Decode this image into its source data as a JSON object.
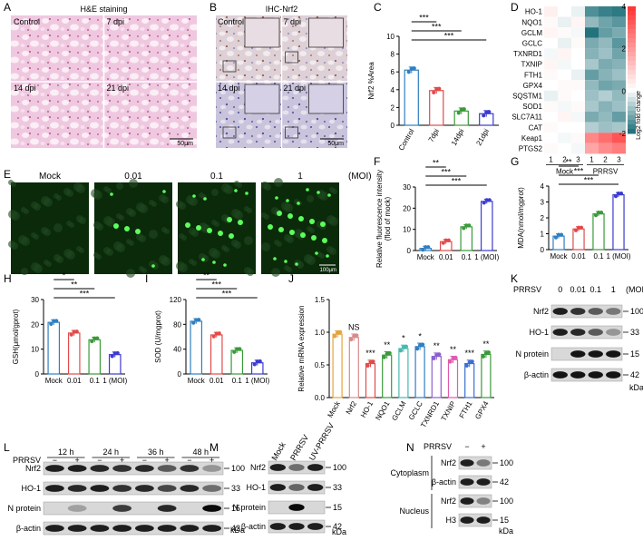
{
  "panel_letters": [
    "A",
    "B",
    "C",
    "D",
    "E",
    "F",
    "G",
    "H",
    "I",
    "J",
    "K",
    "L",
    "M",
    "N"
  ],
  "panelA": {
    "title": "H&E staining",
    "quad_labels": [
      "Control",
      "7 dpi",
      "14 dpi",
      "21 dpi"
    ],
    "scale_bar": "50μm"
  },
  "panelB": {
    "title": "IHC-Nrf2",
    "quad_labels": [
      "Control",
      "7 dpi",
      "14 dpi",
      "21 dpi"
    ],
    "scale_bar": "50μm"
  },
  "panelE": {
    "labels": [
      "Mock",
      "0.01",
      "0.1",
      "1"
    ],
    "unit": "(MOI)",
    "scale_bar": "100μm"
  },
  "panelD": {
    "genes": [
      "HO-1",
      "NQO1",
      "GCLM",
      "GCLC",
      "TXNRD1",
      "TXNIP",
      "FTH1",
      "GPX4",
      "SQSTM1",
      "SOD1",
      "SLC7A11",
      "CAT",
      "Keap1",
      "PTGS2"
    ],
    "reps": [
      "1",
      "2",
      "3",
      "1",
      "2",
      "3"
    ],
    "groups": [
      "Mock",
      "PRRSV"
    ],
    "colorbar_ticks": [
      "4",
      "2",
      "0",
      "-2"
    ],
    "colorbar_label": "Log2 fold change",
    "values": [
      [
        0.3,
        0.0,
        -0.2,
        -1.6,
        -1.8,
        -1.9
      ],
      [
        0.1,
        -0.2,
        0.2,
        -1.0,
        -1.3,
        -1.5
      ],
      [
        0.2,
        0.1,
        -0.1,
        -2.0,
        -1.4,
        -1.2
      ],
      [
        0.0,
        -0.2,
        0.1,
        -1.2,
        -1.0,
        -1.5
      ],
      [
        -0.1,
        0.2,
        0.0,
        -1.1,
        -0.9,
        -1.3
      ],
      [
        0.2,
        -0.1,
        0.0,
        -0.8,
        -1.2,
        -1.1
      ],
      [
        0.1,
        0.0,
        -0.2,
        -1.4,
        -1.1,
        -0.9
      ],
      [
        0.0,
        0.1,
        0.1,
        -1.0,
        -1.3,
        -1.2
      ],
      [
        -0.2,
        0.1,
        0.0,
        -0.9,
        -0.7,
        -1.0
      ],
      [
        0.1,
        -0.1,
        0.1,
        -0.8,
        -1.1,
        -0.9
      ],
      [
        0.0,
        0.2,
        -0.1,
        -1.2,
        -1.0,
        -1.4
      ],
      [
        0.1,
        0.0,
        0.0,
        -0.7,
        -0.9,
        -0.8
      ],
      [
        0.0,
        -0.1,
        0.1,
        2.4,
        2.9,
        3.4
      ],
      [
        0.1,
        0.0,
        -0.1,
        1.8,
        2.3,
        2.6
      ]
    ]
  },
  "chart_data": [
    {
      "panel": "C",
      "type": "bar",
      "categories": [
        "Control",
        "7dpi",
        "14dpi",
        "21dpi"
      ],
      "values": [
        6.2,
        3.9,
        1.6,
        1.3
      ],
      "ylabel": "Nrf2 %Area",
      "ylim": [
        0,
        10
      ],
      "yticks": [
        "0",
        "2",
        "4",
        "6",
        "8",
        "10"
      ],
      "sig": [
        "***",
        "***",
        "***"
      ],
      "colors": [
        "#2f7fc1",
        "#e24a4a",
        "#3a9a3a",
        "#3b3bd0"
      ]
    },
    {
      "panel": "F",
      "type": "bar",
      "categories": [
        "Mock",
        "0.01",
        "0.1",
        "1 (MOI)"
      ],
      "values": [
        1.0,
        4.2,
        11.2,
        23.2
      ],
      "ylabel": "Relative fluorescence intensity (flod of mock)",
      "ylim": [
        0,
        30
      ],
      "yticks": [
        "0",
        "10",
        "20",
        "30"
      ],
      "sig": [
        "**",
        "***",
        "***"
      ],
      "colors": [
        "#2f7fc1",
        "#e24a4a",
        "#3a9a3a",
        "#3b3bd0"
      ]
    },
    {
      "panel": "G",
      "type": "bar",
      "categories": [
        "Mock",
        "0.01",
        "0.1",
        "1 (MOI)"
      ],
      "values": [
        0.85,
        1.3,
        2.25,
        3.45
      ],
      "ylabel": "MDA(nmol/mgprot)",
      "ylim": [
        0,
        4
      ],
      "yticks": [
        "0",
        "1",
        "2",
        "3",
        "4"
      ],
      "sig": [
        "**",
        "***",
        "***"
      ],
      "colors": [
        "#2f7fc1",
        "#e24a4a",
        "#3a9a3a",
        "#3b3bd0"
      ]
    },
    {
      "panel": "H",
      "type": "bar",
      "categories": [
        "Mock",
        "0.01",
        "0.1",
        "1 (MOI)"
      ],
      "values": [
        20.8,
        16.5,
        13.8,
        7.8
      ],
      "ylabel": "GSH(μmol/gprot)",
      "ylim": [
        0,
        30
      ],
      "yticks": [
        "0",
        "10",
        "20",
        "30"
      ],
      "sig": [
        "*",
        "**",
        "***"
      ],
      "colors": [
        "#2f7fc1",
        "#e24a4a",
        "#3a9a3a",
        "#3b3bd0"
      ]
    },
    {
      "panel": "I",
      "type": "bar",
      "categories": [
        "Mock",
        "0.01",
        "0.1",
        "1 (MOI)"
      ],
      "values": [
        85,
        63,
        38,
        18
      ],
      "ylabel": "SOD (U/mgprot)",
      "ylim": [
        0,
        120
      ],
      "yticks": [
        "0",
        "40",
        "80",
        "120"
      ],
      "sig": [
        "**",
        "***",
        "***"
      ],
      "colors": [
        "#2f7fc1",
        "#e24a4a",
        "#3a9a3a",
        "#3b3bd0"
      ]
    },
    {
      "panel": "J",
      "type": "bar",
      "categories": [
        "Mock",
        "Nrf2",
        "HO-1",
        "NQO1",
        "GCLM",
        "GCLC",
        "TXNRD1",
        "TXNIP",
        "FTH1",
        "GPX4"
      ],
      "values": [
        0.97,
        0.92,
        0.52,
        0.65,
        0.75,
        0.78,
        0.63,
        0.58,
        0.52,
        0.66
      ],
      "ylabel": "Relative mRNA expression",
      "ylim": [
        0,
        1.5
      ],
      "yticks": [
        "0.0",
        "0.5",
        "1.0",
        "1.5"
      ],
      "sig": [
        "",
        "NS",
        "***",
        "**",
        "*",
        "*",
        "**",
        "**",
        "***",
        "**"
      ],
      "colors": [
        "#e6a23c",
        "#d98a8a",
        "#e24a4a",
        "#3a9a3a",
        "#48b8b0",
        "#2f7fc1",
        "#8c5fd0",
        "#e05ab0",
        "#3b6fd0",
        "#3a9a3a"
      ]
    }
  ],
  "panelK": {
    "header": "PRRSV",
    "doses": [
      "0",
      "0.01",
      "0.1",
      "1"
    ],
    "unit": "(MOI)",
    "rows": [
      "Nrf2",
      "HO-1",
      "N protein",
      "β-actin"
    ],
    "mw": [
      "100",
      "33",
      "15",
      "42"
    ],
    "kda": "kDa"
  },
  "panelL": {
    "times": [
      "12 h",
      "24 h",
      "36 h",
      "48 h"
    ],
    "header": "PRRSV",
    "signs": [
      "−",
      "+",
      "−",
      "+",
      "−",
      "+",
      "−",
      "+"
    ],
    "rows": [
      "Nrf2",
      "HO-1",
      "N protein",
      "β-actin"
    ],
    "mw": [
      "100",
      "33",
      "15",
      "42"
    ],
    "kda": "kDa"
  },
  "panelM": {
    "lanes": [
      "Mock",
      "PRRSV",
      "UV-PRRSV"
    ],
    "rows": [
      "Nrf2",
      "HO-1",
      "N protein",
      "β-actin"
    ],
    "mw": [
      "100",
      "33",
      "15",
      "42"
    ],
    "kda": "kDa"
  },
  "panelN": {
    "header": "PRRSV",
    "signs": [
      "−",
      "+"
    ],
    "groups": [
      "Cytoplasm",
      "Nucleus"
    ],
    "rows": [
      "Nrf2",
      "β-actin",
      "Nrf2",
      "H3"
    ],
    "mw": [
      "100",
      "42",
      "100",
      "15"
    ],
    "kda": "kDa"
  }
}
